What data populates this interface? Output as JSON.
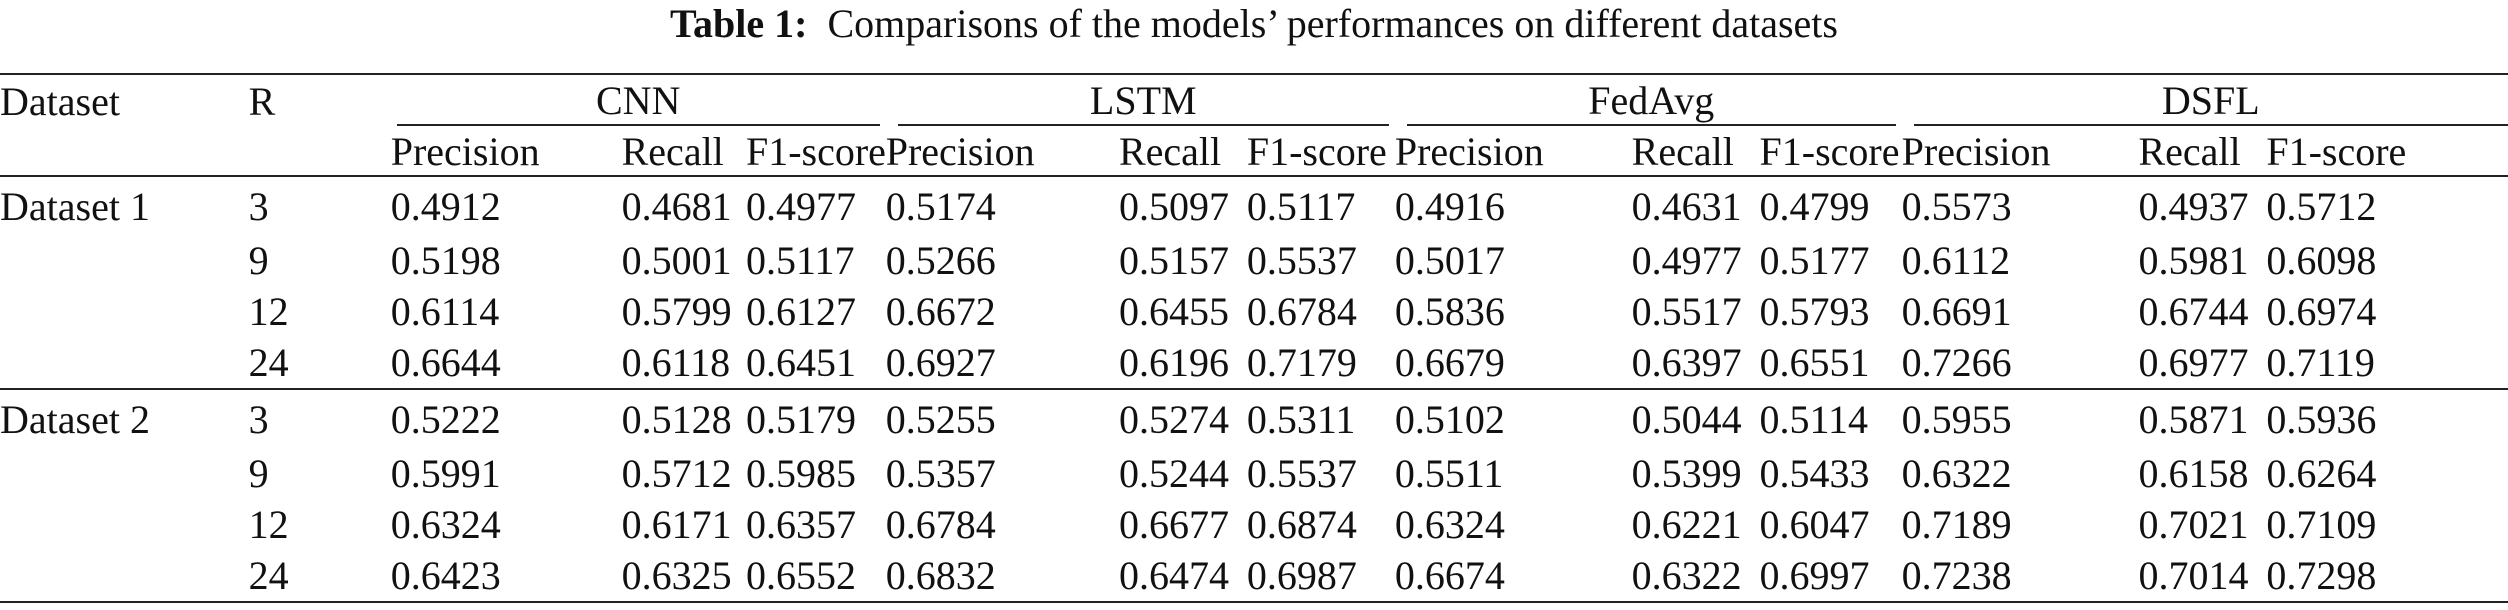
{
  "caption": {
    "label": "Table 1:",
    "text": "Comparisons of the models’ performances on different datasets"
  },
  "header": {
    "dataset": "Dataset",
    "r": "R",
    "models": [
      "CNN",
      "LSTM",
      "FedAvg",
      "DSFL"
    ],
    "metrics": [
      "Precision",
      "Recall",
      "F1-score"
    ]
  },
  "blocks": [
    {
      "name": "Dataset 1",
      "rows": [
        {
          "r": "3",
          "cnn": [
            "0.4912",
            "0.4681",
            "0.4977"
          ],
          "lstm": [
            "0.5174",
            "0.5097",
            "0.5117"
          ],
          "fedavg": [
            "0.4916",
            "0.4631",
            "0.4799"
          ],
          "dsfl": [
            "0.5573",
            "0.4937",
            "0.5712"
          ]
        },
        {
          "r": "9",
          "cnn": [
            "0.5198",
            "0.5001",
            "0.5117"
          ],
          "lstm": [
            "0.5266",
            "0.5157",
            "0.5537"
          ],
          "fedavg": [
            "0.5017",
            "0.4977",
            "0.5177"
          ],
          "dsfl": [
            "0.6112",
            "0.5981",
            "0.6098"
          ]
        },
        {
          "r": "12",
          "cnn": [
            "0.6114",
            "0.5799",
            "0.6127"
          ],
          "lstm": [
            "0.6672",
            "0.6455",
            "0.6784"
          ],
          "fedavg": [
            "0.5836",
            "0.5517",
            "0.5793"
          ],
          "dsfl": [
            "0.6691",
            "0.6744",
            "0.6974"
          ]
        },
        {
          "r": "24",
          "cnn": [
            "0.6644",
            "0.6118",
            "0.6451"
          ],
          "lstm": [
            "0.6927",
            "0.6196",
            "0.7179"
          ],
          "fedavg": [
            "0.6679",
            "0.6397",
            "0.6551"
          ],
          "dsfl": [
            "0.7266",
            "0.6977",
            "0.7119"
          ]
        }
      ]
    },
    {
      "name": "Dataset 2",
      "rows": [
        {
          "r": "3",
          "cnn": [
            "0.5222",
            "0.5128",
            "0.5179"
          ],
          "lstm": [
            "0.5255",
            "0.5274",
            "0.5311"
          ],
          "fedavg": [
            "0.5102",
            "0.5044",
            "0.5114"
          ],
          "dsfl": [
            "0.5955",
            "0.5871",
            "0.5936"
          ]
        },
        {
          "r": "9",
          "cnn": [
            "0.5991",
            "0.5712",
            "0.5985"
          ],
          "lstm": [
            "0.5357",
            "0.5244",
            "0.5537"
          ],
          "fedavg": [
            "0.5511",
            "0.5399",
            "0.5433"
          ],
          "dsfl": [
            "0.6322",
            "0.6158",
            "0.6264"
          ]
        },
        {
          "r": "12",
          "cnn": [
            "0.6324",
            "0.6171",
            "0.6357"
          ],
          "lstm": [
            "0.6784",
            "0.6677",
            "0.6874"
          ],
          "fedavg": [
            "0.6324",
            "0.6221",
            "0.6047"
          ],
          "dsfl": [
            "0.7189",
            "0.7021",
            "0.7109"
          ]
        },
        {
          "r": "24",
          "cnn": [
            "0.6423",
            "0.6325",
            "0.6552"
          ],
          "lstm": [
            "0.6832",
            "0.6474",
            "0.6987"
          ],
          "fedavg": [
            "0.6674",
            "0.6322",
            "0.6997"
          ],
          "dsfl": [
            "0.7238",
            "0.7014",
            "0.7298"
          ]
        }
      ]
    }
  ]
}
